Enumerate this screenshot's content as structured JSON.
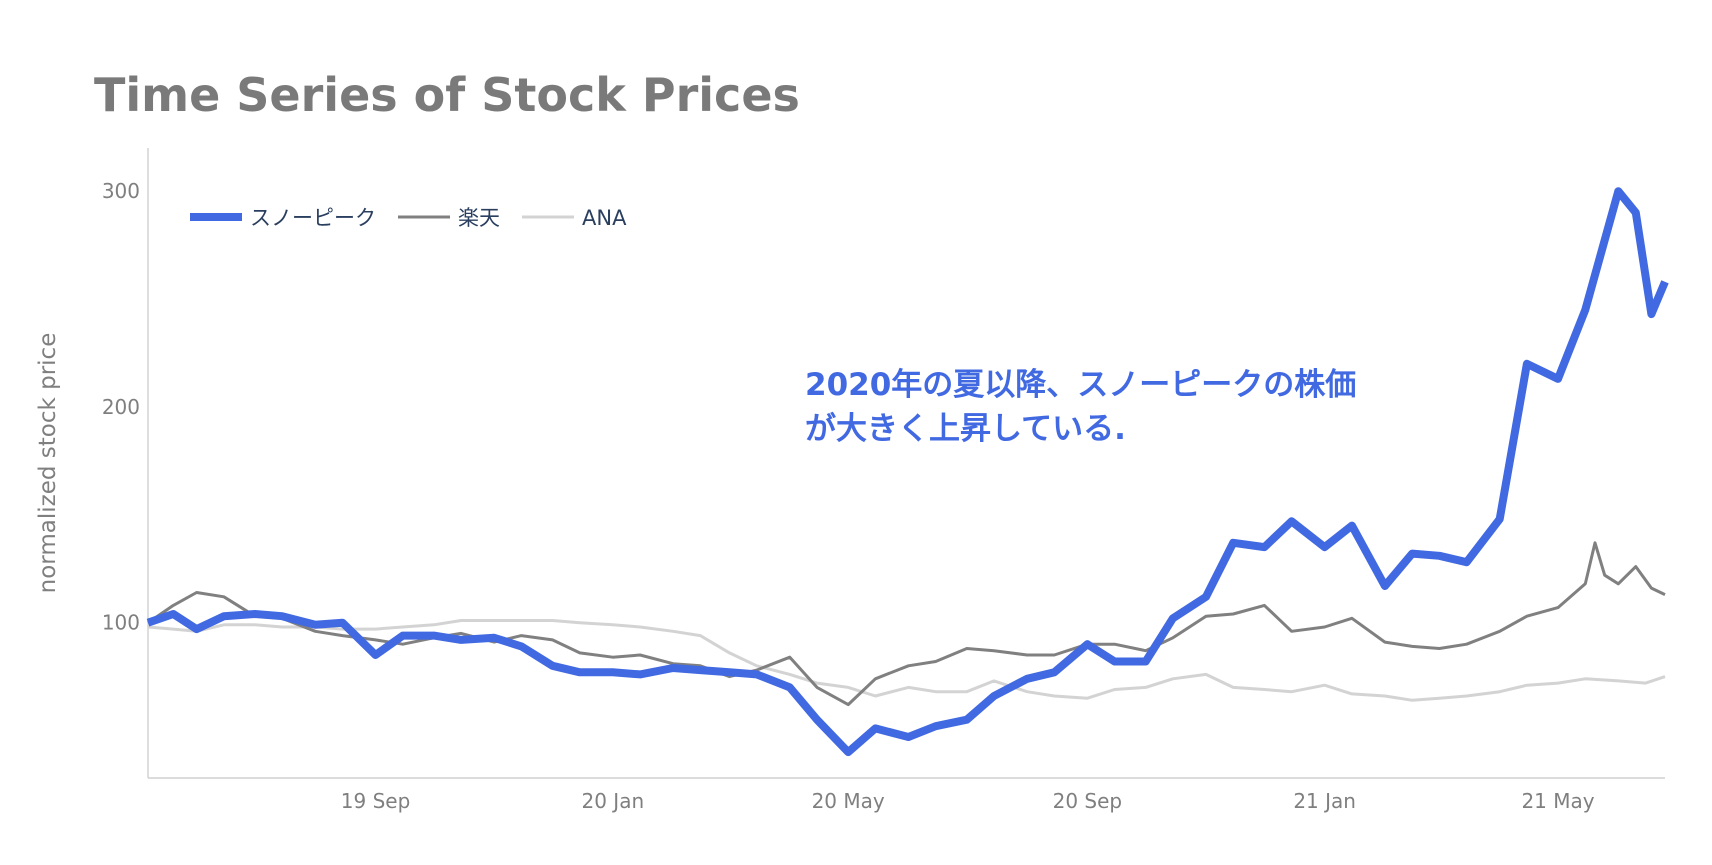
{
  "chart_data": {
    "type": "line",
    "title": "Time Series of Stock Prices",
    "xlabel": "",
    "ylabel": "normalized stock price",
    "x_range": [
      "2019-05-07",
      "2021-06-25"
    ],
    "ylim": [
      28,
      320
    ],
    "x_ticks": [
      {
        "date": "2019-09-01",
        "label": "19 Sep"
      },
      {
        "date": "2020-01-01",
        "label": "20 Jan"
      },
      {
        "date": "2020-05-01",
        "label": "20 May"
      },
      {
        "date": "2020-09-01",
        "label": "20 Sep"
      },
      {
        "date": "2021-01-01",
        "label": "21 Jan"
      },
      {
        "date": "2021-05-01",
        "label": "21 May"
      }
    ],
    "y_ticks": [
      100,
      200,
      300
    ],
    "grid": false,
    "legend": {
      "position": "top-left",
      "orientation": "horizontal"
    },
    "annotation": {
      "lines": [
        "2020年の夏以降、スノーピークの株価",
        "が大きく上昇している."
      ],
      "color": "#4169e1"
    },
    "series": [
      {
        "name": "スノーピーク",
        "color": "#4169e1",
        "points": [
          [
            "2019-05-07",
            100
          ],
          [
            "2019-05-20",
            104
          ],
          [
            "2019-06-01",
            97
          ],
          [
            "2019-06-15",
            103
          ],
          [
            "2019-07-01",
            104
          ],
          [
            "2019-07-15",
            103
          ],
          [
            "2019-08-01",
            99
          ],
          [
            "2019-08-15",
            100
          ],
          [
            "2019-09-01",
            85
          ],
          [
            "2019-09-15",
            94
          ],
          [
            "2019-10-01",
            94
          ],
          [
            "2019-10-15",
            92
          ],
          [
            "2019-11-01",
            93
          ],
          [
            "2019-11-15",
            89
          ],
          [
            "2019-12-01",
            80
          ],
          [
            "2019-12-15",
            77
          ],
          [
            "2020-01-01",
            77
          ],
          [
            "2020-01-15",
            76
          ],
          [
            "2020-02-01",
            79
          ],
          [
            "2020-02-15",
            78
          ],
          [
            "2020-03-01",
            77
          ],
          [
            "2020-03-15",
            76
          ],
          [
            "2020-04-01",
            70
          ],
          [
            "2020-04-15",
            55
          ],
          [
            "2020-05-01",
            40
          ],
          [
            "2020-05-15",
            51
          ],
          [
            "2020-06-01",
            47
          ],
          [
            "2020-06-15",
            52
          ],
          [
            "2020-07-01",
            55
          ],
          [
            "2020-07-15",
            66
          ],
          [
            "2020-08-01",
            74
          ],
          [
            "2020-08-15",
            77
          ],
          [
            "2020-09-01",
            90
          ],
          [
            "2020-09-15",
            82
          ],
          [
            "2020-10-01",
            82
          ],
          [
            "2020-10-15",
            102
          ],
          [
            "2020-11-01",
            112
          ],
          [
            "2020-11-15",
            137
          ],
          [
            "2020-12-01",
            135
          ],
          [
            "2020-12-15",
            147
          ],
          [
            "2021-01-01",
            135
          ],
          [
            "2021-01-15",
            145
          ],
          [
            "2021-02-01",
            117
          ],
          [
            "2021-02-15",
            132
          ],
          [
            "2021-03-01",
            131
          ],
          [
            "2021-03-15",
            128
          ],
          [
            "2021-04-01",
            148
          ],
          [
            "2021-04-15",
            220
          ],
          [
            "2021-05-01",
            213
          ],
          [
            "2021-05-15",
            245
          ],
          [
            "2021-06-01",
            300
          ],
          [
            "2021-06-10",
            290
          ],
          [
            "2021-06-18",
            243
          ],
          [
            "2021-06-25",
            258
          ]
        ]
      },
      {
        "name": "楽天",
        "color": "#808080",
        "points": [
          [
            "2019-05-07",
            100
          ],
          [
            "2019-05-20",
            108
          ],
          [
            "2019-06-01",
            114
          ],
          [
            "2019-06-15",
            112
          ],
          [
            "2019-07-01",
            103
          ],
          [
            "2019-07-15",
            102
          ],
          [
            "2019-08-01",
            96
          ],
          [
            "2019-08-15",
            94
          ],
          [
            "2019-09-01",
            92
          ],
          [
            "2019-09-15",
            90
          ],
          [
            "2019-10-01",
            93
          ],
          [
            "2019-10-15",
            95
          ],
          [
            "2019-11-01",
            91
          ],
          [
            "2019-11-15",
            94
          ],
          [
            "2019-12-01",
            92
          ],
          [
            "2019-12-15",
            86
          ],
          [
            "2020-01-01",
            84
          ],
          [
            "2020-01-15",
            85
          ],
          [
            "2020-02-01",
            81
          ],
          [
            "2020-02-15",
            80
          ],
          [
            "2020-03-01",
            75
          ],
          [
            "2020-03-15",
            78
          ],
          [
            "2020-04-01",
            84
          ],
          [
            "2020-04-15",
            70
          ],
          [
            "2020-05-01",
            62
          ],
          [
            "2020-05-15",
            74
          ],
          [
            "2020-06-01",
            80
          ],
          [
            "2020-06-15",
            82
          ],
          [
            "2020-07-01",
            88
          ],
          [
            "2020-07-15",
            87
          ],
          [
            "2020-08-01",
            85
          ],
          [
            "2020-08-15",
            85
          ],
          [
            "2020-09-01",
            90
          ],
          [
            "2020-09-15",
            90
          ],
          [
            "2020-10-01",
            87
          ],
          [
            "2020-10-15",
            93
          ],
          [
            "2020-11-01",
            103
          ],
          [
            "2020-11-15",
            104
          ],
          [
            "2020-12-01",
            108
          ],
          [
            "2020-12-15",
            96
          ],
          [
            "2021-01-01",
            98
          ],
          [
            "2021-01-15",
            102
          ],
          [
            "2021-02-01",
            91
          ],
          [
            "2021-02-15",
            89
          ],
          [
            "2021-03-01",
            88
          ],
          [
            "2021-03-15",
            90
          ],
          [
            "2021-04-01",
            96
          ],
          [
            "2021-04-15",
            103
          ],
          [
            "2021-05-01",
            107
          ],
          [
            "2021-05-15",
            118
          ],
          [
            "2021-05-20",
            137
          ],
          [
            "2021-05-25",
            122
          ],
          [
            "2021-06-01",
            118
          ],
          [
            "2021-06-10",
            126
          ],
          [
            "2021-06-18",
            116
          ],
          [
            "2021-06-25",
            113
          ]
        ]
      },
      {
        "name": "ANA",
        "color": "#d3d3d3",
        "points": [
          [
            "2019-05-07",
            98
          ],
          [
            "2019-05-20",
            97
          ],
          [
            "2019-06-01",
            96
          ],
          [
            "2019-06-15",
            99
          ],
          [
            "2019-07-01",
            99
          ],
          [
            "2019-07-15",
            98
          ],
          [
            "2019-08-01",
            98
          ],
          [
            "2019-08-15",
            97
          ],
          [
            "2019-09-01",
            97
          ],
          [
            "2019-09-15",
            98
          ],
          [
            "2019-10-01",
            99
          ],
          [
            "2019-10-15",
            101
          ],
          [
            "2019-11-01",
            101
          ],
          [
            "2019-11-15",
            101
          ],
          [
            "2019-12-01",
            101
          ],
          [
            "2019-12-15",
            100
          ],
          [
            "2020-01-01",
            99
          ],
          [
            "2020-01-15",
            98
          ],
          [
            "2020-02-01",
            96
          ],
          [
            "2020-02-15",
            94
          ],
          [
            "2020-03-01",
            86
          ],
          [
            "2020-03-15",
            80
          ],
          [
            "2020-04-01",
            76
          ],
          [
            "2020-04-15",
            72
          ],
          [
            "2020-05-01",
            70
          ],
          [
            "2020-05-15",
            66
          ],
          [
            "2020-06-01",
            70
          ],
          [
            "2020-06-15",
            68
          ],
          [
            "2020-07-01",
            68
          ],
          [
            "2020-07-15",
            73
          ],
          [
            "2020-08-01",
            68
          ],
          [
            "2020-08-15",
            66
          ],
          [
            "2020-09-01",
            65
          ],
          [
            "2020-09-15",
            69
          ],
          [
            "2020-10-01",
            70
          ],
          [
            "2020-10-15",
            74
          ],
          [
            "2020-11-01",
            76
          ],
          [
            "2020-11-15",
            70
          ],
          [
            "2020-12-01",
            69
          ],
          [
            "2020-12-15",
            68
          ],
          [
            "2021-01-01",
            71
          ],
          [
            "2021-01-15",
            67
          ],
          [
            "2021-02-01",
            66
          ],
          [
            "2021-02-15",
            64
          ],
          [
            "2021-03-01",
            65
          ],
          [
            "2021-03-15",
            66
          ],
          [
            "2021-04-01",
            68
          ],
          [
            "2021-04-15",
            71
          ],
          [
            "2021-05-01",
            72
          ],
          [
            "2021-05-15",
            74
          ],
          [
            "2021-06-01",
            73
          ],
          [
            "2021-06-15",
            72
          ],
          [
            "2021-06-25",
            75
          ]
        ]
      }
    ]
  }
}
